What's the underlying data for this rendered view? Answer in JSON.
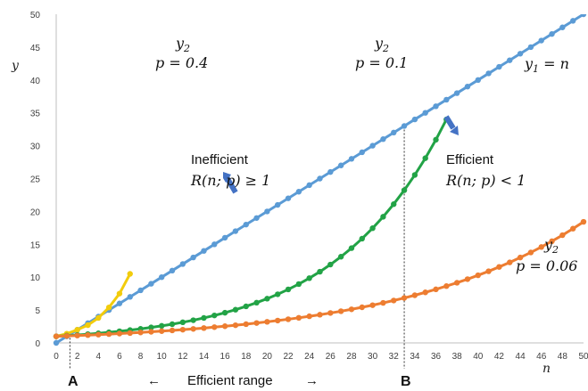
{
  "chart_data": {
    "type": "line",
    "xlabel": "n",
    "ylabel": "y",
    "xlim": [
      0,
      50
    ],
    "ylim": [
      0,
      50
    ],
    "x_ticks": [
      "0",
      "2",
      "4",
      "6",
      "8",
      "10",
      "12",
      "14",
      "16",
      "18",
      "20",
      "22",
      "24",
      "26",
      "28",
      "30",
      "32",
      "34",
      "36",
      "38",
      "40",
      "42",
      "44",
      "46",
      "48",
      "50"
    ],
    "y_ticks": [
      "0",
      "5",
      "10",
      "15",
      "20",
      "25",
      "30",
      "35",
      "40",
      "45",
      "50"
    ],
    "grid": false,
    "series": [
      {
        "name": "y1 = n",
        "color": "#5b9bd5",
        "x": [
          0,
          1,
          2,
          3,
          4,
          5,
          6,
          7,
          8,
          9,
          10,
          11,
          12,
          13,
          14,
          15,
          16,
          17,
          18,
          19,
          20,
          21,
          22,
          23,
          24,
          25,
          26,
          27,
          28,
          29,
          30,
          31,
          32,
          33,
          34,
          35,
          36,
          37,
          38,
          39,
          40,
          41,
          42,
          43,
          44,
          45,
          46,
          47,
          48,
          49,
          50
        ],
        "y": [
          0,
          1,
          2,
          3,
          4,
          5,
          6,
          7,
          8,
          9,
          10,
          11,
          12,
          13,
          14,
          15,
          16,
          17,
          18,
          19,
          20,
          21,
          22,
          23,
          24,
          25,
          26,
          27,
          28,
          29,
          30,
          31,
          32,
          33,
          34,
          35,
          36,
          37,
          38,
          39,
          40,
          41,
          42,
          43,
          44,
          45,
          46,
          47,
          48,
          49,
          50
        ]
      },
      {
        "name": "y2 p = 0.4",
        "color": "#f2cc0c",
        "x": [
          0,
          1,
          2,
          3,
          4,
          5,
          6,
          7
        ],
        "y": [
          1.0,
          1.4,
          2.0,
          2.7,
          3.8,
          5.4,
          7.5,
          10.5
        ]
      },
      {
        "name": "y2 p = 0.1",
        "color": "#22a346",
        "x": [
          0,
          1,
          2,
          3,
          4,
          5,
          6,
          7,
          8,
          9,
          10,
          11,
          12,
          13,
          14,
          15,
          16,
          17,
          18,
          19,
          20,
          21,
          22,
          23,
          24,
          25,
          26,
          27,
          28,
          29,
          30,
          31,
          32,
          33,
          34,
          35,
          36,
          37
        ],
        "y": [
          1.0,
          1.1,
          1.21,
          1.33,
          1.46,
          1.61,
          1.77,
          1.95,
          2.14,
          2.36,
          2.59,
          2.85,
          3.14,
          3.45,
          3.8,
          4.18,
          4.59,
          5.05,
          5.56,
          6.12,
          6.73,
          7.4,
          8.14,
          8.95,
          9.85,
          10.83,
          11.92,
          13.11,
          14.42,
          15.86,
          17.45,
          19.19,
          21.11,
          23.23,
          25.55,
          28.1,
          30.91,
          34.0
        ]
      },
      {
        "name": "y2 p = 0.06",
        "color": "#ed7d31",
        "x": [
          0,
          1,
          2,
          3,
          4,
          5,
          6,
          7,
          8,
          9,
          10,
          11,
          12,
          13,
          14,
          15,
          16,
          17,
          18,
          19,
          20,
          21,
          22,
          23,
          24,
          25,
          26,
          27,
          28,
          29,
          30,
          31,
          32,
          33,
          34,
          35,
          36,
          37,
          38,
          39,
          40,
          41,
          42,
          43,
          44,
          45,
          46,
          47,
          48,
          49,
          50
        ],
        "y": [
          1.0,
          1.06,
          1.12,
          1.19,
          1.26,
          1.34,
          1.42,
          1.5,
          1.59,
          1.69,
          1.79,
          1.9,
          2.01,
          2.13,
          2.26,
          2.4,
          2.54,
          2.69,
          2.85,
          3.03,
          3.21,
          3.4,
          3.6,
          3.82,
          4.05,
          4.29,
          4.55,
          4.82,
          5.11,
          5.42,
          5.74,
          6.09,
          6.45,
          6.84,
          7.25,
          7.69,
          8.15,
          8.64,
          9.15,
          9.7,
          10.29,
          10.9,
          11.56,
          12.25,
          12.99,
          13.76,
          14.59,
          15.47,
          16.39,
          17.38,
          18.42
        ]
      }
    ],
    "labels": {
      "y2": "y",
      "y2_sub": "2",
      "p04": "p = 0.4",
      "p01": "p = 0.1",
      "p006": "p = 0.06",
      "y1_a": "y",
      "y1_sub": "1",
      "y1_b": " = n",
      "inefficient": "Inefficient",
      "inefficient_cond": "R(n; p) ≥ 1",
      "efficient": "Efficient",
      "efficient_cond": "R(n; p) < 1",
      "efficient_range": "Efficient range",
      "arrow_left": "←",
      "arrow_right": "→",
      "A": "A",
      "B": "B"
    },
    "markers": {
      "A_x": 1.3,
      "B_x": 33
    }
  }
}
